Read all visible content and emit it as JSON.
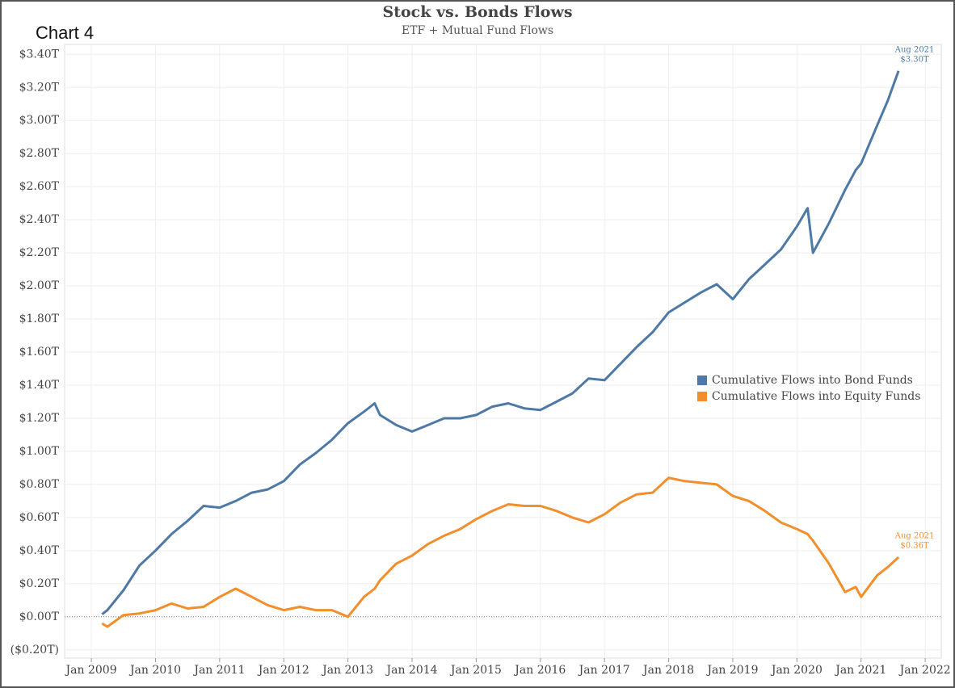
{
  "chart_data": {
    "type": "line",
    "title": "Stock vs. Bonds Flows",
    "subtitle": "ETF + Mutual Fund Flows",
    "label": "Chart 4",
    "x": [
      "2009-03",
      "2009-04",
      "2009-07",
      "2009-10",
      "2010-01",
      "2010-04",
      "2010-07",
      "2010-10",
      "2011-01",
      "2011-04",
      "2011-07",
      "2011-10",
      "2012-01",
      "2012-04",
      "2012-07",
      "2012-10",
      "2013-01",
      "2013-04",
      "2013-06",
      "2013-07",
      "2013-10",
      "2014-01",
      "2014-04",
      "2014-07",
      "2014-10",
      "2015-01",
      "2015-04",
      "2015-07",
      "2015-10",
      "2016-01",
      "2016-04",
      "2016-07",
      "2016-10",
      "2017-01",
      "2017-04",
      "2017-07",
      "2017-10",
      "2018-01",
      "2018-04",
      "2018-07",
      "2018-10",
      "2019-01",
      "2019-04",
      "2019-07",
      "2019-10",
      "2020-01",
      "2020-03",
      "2020-04",
      "2020-07",
      "2020-10",
      "2020-12",
      "2021-01",
      "2021-04",
      "2021-06",
      "2021-08"
    ],
    "series": [
      {
        "name": "Cumulative Flows into Bond Funds",
        "color": "#4e79a7",
        "values": [
          0.015,
          0.04,
          0.16,
          0.31,
          0.4,
          0.5,
          0.58,
          0.67,
          0.66,
          0.7,
          0.75,
          0.77,
          0.82,
          0.92,
          0.99,
          1.07,
          1.17,
          1.24,
          1.29,
          1.22,
          1.16,
          1.12,
          1.16,
          1.2,
          1.2,
          1.22,
          1.27,
          1.29,
          1.26,
          1.25,
          1.3,
          1.35,
          1.44,
          1.43,
          1.53,
          1.63,
          1.72,
          1.84,
          1.9,
          1.96,
          2.01,
          1.92,
          2.04,
          2.13,
          2.22,
          2.36,
          2.47,
          2.2,
          2.38,
          2.58,
          2.7,
          2.74,
          2.97,
          3.12,
          3.3
        ]
      },
      {
        "name": "Cumulative Flows into Equity Funds",
        "color": "#f28e2b",
        "values": [
          -0.04,
          -0.06,
          0.01,
          0.02,
          0.04,
          0.08,
          0.05,
          0.06,
          0.12,
          0.17,
          0.12,
          0.07,
          0.04,
          0.06,
          0.04,
          0.04,
          0.0,
          0.12,
          0.17,
          0.22,
          0.32,
          0.37,
          0.44,
          0.49,
          0.53,
          0.59,
          0.64,
          0.68,
          0.67,
          0.67,
          0.64,
          0.6,
          0.57,
          0.62,
          0.69,
          0.74,
          0.75,
          0.84,
          0.82,
          0.81,
          0.8,
          0.73,
          0.7,
          0.64,
          0.57,
          0.53,
          0.5,
          0.46,
          0.32,
          0.15,
          0.18,
          0.12,
          0.25,
          0.3,
          0.36
        ]
      }
    ],
    "annotations": [
      {
        "series": 0,
        "date": "Aug 2021",
        "text": "$3.30T"
      },
      {
        "series": 1,
        "date": "Aug 2021",
        "text": "$0.36T"
      }
    ],
    "xlim": [
      "2008-08",
      "2022-04"
    ],
    "xticks": [
      {
        "value": "2009-01",
        "label": "Jan 2009"
      },
      {
        "value": "2010-01",
        "label": "Jan 2010"
      },
      {
        "value": "2011-01",
        "label": "Jan 2011"
      },
      {
        "value": "2012-01",
        "label": "Jan 2012"
      },
      {
        "value": "2013-01",
        "label": "Jan 2013"
      },
      {
        "value": "2014-01",
        "label": "Jan 2014"
      },
      {
        "value": "2015-01",
        "label": "Jan 2015"
      },
      {
        "value": "2016-01",
        "label": "Jan 2016"
      },
      {
        "value": "2017-01",
        "label": "Jan 2017"
      },
      {
        "value": "2018-01",
        "label": "Jan 2018"
      },
      {
        "value": "2019-01",
        "label": "Jan 2019"
      },
      {
        "value": "2020-01",
        "label": "Jan 2020"
      },
      {
        "value": "2021-01",
        "label": "Jan 2021"
      },
      {
        "value": "2022-01",
        "label": "Jan 2022"
      }
    ],
    "ylim": [
      -0.25,
      3.46
    ],
    "yticks": [
      {
        "value": -0.2,
        "label": "($0.20T)"
      },
      {
        "value": 0,
        "label": "$0.00T"
      },
      {
        "value": 0.2,
        "label": "$0.20T"
      },
      {
        "value": 0.4,
        "label": "$0.40T"
      },
      {
        "value": 0.6,
        "label": "$0.60T"
      },
      {
        "value": 0.8,
        "label": "$0.80T"
      },
      {
        "value": 1.0,
        "label": "$1.00T"
      },
      {
        "value": 1.2,
        "label": "$1.20T"
      },
      {
        "value": 1.4,
        "label": "$1.40T"
      },
      {
        "value": 1.6,
        "label": "$1.60T"
      },
      {
        "value": 1.8,
        "label": "$1.80T"
      },
      {
        "value": 2.0,
        "label": "$2.00T"
      },
      {
        "value": 2.2,
        "label": "$2.20T"
      },
      {
        "value": 2.4,
        "label": "$2.40T"
      },
      {
        "value": 2.6,
        "label": "$2.60T"
      },
      {
        "value": 2.8,
        "label": "$2.80T"
      },
      {
        "value": 3.0,
        "label": "$3.00T"
      },
      {
        "value": 3.2,
        "label": "$3.20T"
      },
      {
        "value": 3.4,
        "label": "$3.40T"
      }
    ],
    "grid": true,
    "legend": "right"
  }
}
